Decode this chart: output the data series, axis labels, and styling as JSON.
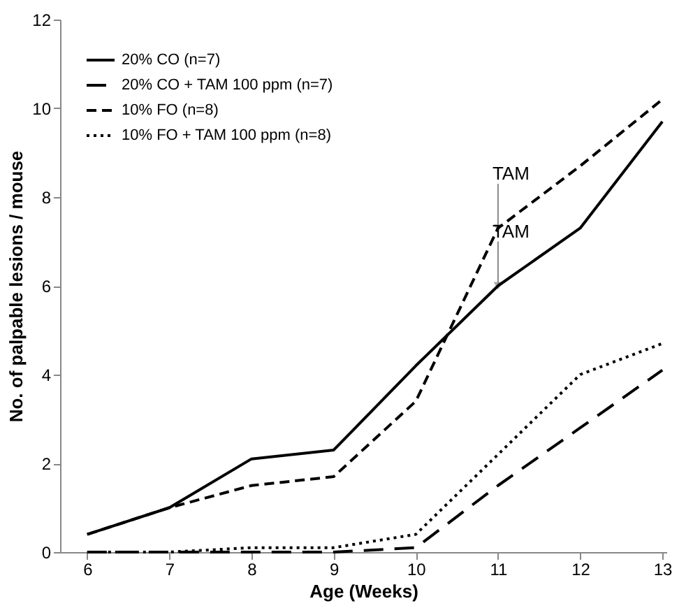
{
  "chart_data": {
    "type": "line",
    "xlabel": "Age (Weeks)",
    "ylabel": "No. of palpable lesions / mouse",
    "categories": [
      "6",
      "7",
      "8",
      "9",
      "10",
      "11",
      "12",
      "13"
    ],
    "series": [
      {
        "name": "20% CO (n=7)",
        "color": "#000000",
        "line_style": "solid",
        "values": [
          0.4,
          1.0,
          2.1,
          2.3,
          4.2,
          6.0,
          7.3,
          9.7
        ]
      },
      {
        "name": "20% CO + TAM 100 ppm (n=7)",
        "color": "#000000",
        "line_style": "dashed",
        "values": [
          0,
          0,
          0,
          0,
          0.1,
          1.5,
          2.8,
          4.1
        ]
      },
      {
        "name": "10% FO (n=8)",
        "color": "#000000",
        "line_style": "dashed",
        "values": [
          0.4,
          1.0,
          1.5,
          1.7,
          3.4,
          7.3,
          8.7,
          10.2
        ]
      },
      {
        "name": "10% FO + TAM 100 ppm (n=8)",
        "color": "#000000",
        "line_style": "dotted",
        "values": [
          0,
          0,
          0.1,
          0.1,
          0.4,
          2.2,
          4.0,
          4.7
        ]
      }
    ],
    "ylim": [
      0,
      12
    ],
    "yticks": [
      0,
      2,
      4,
      6,
      8,
      10,
      12
    ],
    "grid": false,
    "legend": "top left",
    "marker": "none",
    "annotations": [
      {
        "text": "TAM",
        "x": "11",
        "y": 7.3
      },
      {
        "text": "TAM",
        "x": "11",
        "y": 6.0
      }
    ]
  }
}
